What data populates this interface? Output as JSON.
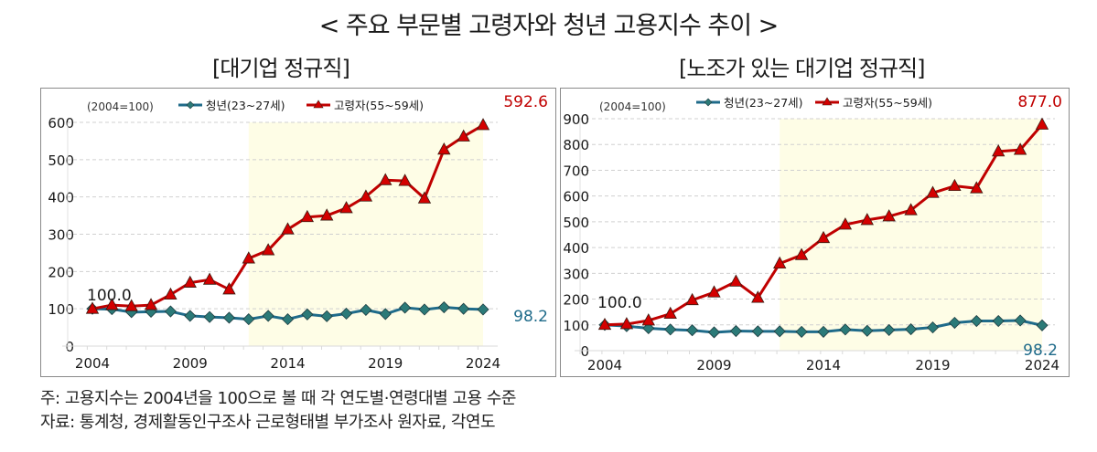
{
  "title": "< 주요 부문별 고령자와 청년 고용지수 추이 >",
  "notes": {
    "note": "주: 고용지수는 2004년을 100으로 볼 때 각 연도별·연령대별 고용 수준",
    "source": "자료: 통계청, 경제활동인구조사 근로형태별 부가조사 원자료, 각연도"
  },
  "colors": {
    "youth": "#1f6b8a",
    "youth_marker": "#2b7a78",
    "elder": "#c00000",
    "elder_marker": "#d40000",
    "shade": "#fefde6",
    "grid": "#d0d0d0"
  },
  "chart_data": [
    {
      "type": "line",
      "title": "[대기업 정규직]",
      "unit_note": "(2004=100)",
      "x": [
        2004,
        2005,
        2006,
        2007,
        2008,
        2009,
        2010,
        2011,
        2012,
        2013,
        2014,
        2015,
        2016,
        2017,
        2018,
        2019,
        2020,
        2021,
        2022,
        2023,
        2024
      ],
      "xticks": [
        "2004",
        "2009",
        "2014",
        "2019",
        "2024"
      ],
      "yticks": [
        "0",
        "100",
        "200",
        "300",
        "400",
        "500",
        "600"
      ],
      "ylim": [
        0,
        600
      ],
      "shaded_range": [
        2012,
        2024
      ],
      "grid": true,
      "legend": "top-center",
      "series": [
        {
          "name": "청년(23~27세)",
          "marker": "diamond",
          "values": [
            100,
            99,
            91,
            92,
            93,
            81,
            78,
            76,
            72,
            81,
            72,
            85,
            80,
            87,
            97,
            86,
            103,
            98,
            104,
            100,
            98.2
          ]
        },
        {
          "name": "고령자(55~59세)",
          "marker": "triangle",
          "values": [
            100,
            110,
            107,
            110,
            138,
            170,
            178,
            152,
            235,
            257,
            313,
            346,
            350,
            370,
            401,
            445,
            443,
            396,
            527,
            562,
            592.6
          ]
        }
      ],
      "annotations": {
        "start": "100.0",
        "elder_end": "592.6",
        "youth_end": "98.2"
      }
    },
    {
      "type": "line",
      "title": "[노조가 있는 대기업 정규직]",
      "unit_note": "(2004=100)",
      "x": [
        2004,
        2005,
        2006,
        2007,
        2008,
        2009,
        2010,
        2011,
        2012,
        2013,
        2014,
        2015,
        2016,
        2017,
        2018,
        2019,
        2020,
        2021,
        2022,
        2023,
        2024
      ],
      "xticks": [
        "2004",
        "2009",
        "2014",
        "2019",
        "2024"
      ],
      "yticks": [
        "0",
        "100",
        "200",
        "300",
        "400",
        "500",
        "600",
        "700",
        "800",
        "900"
      ],
      "ylim": [
        0,
        900
      ],
      "shaded_range": [
        2012,
        2024
      ],
      "grid": true,
      "legend": "top-center",
      "series": [
        {
          "name": "청년(23~27세)",
          "marker": "diamond",
          "values": [
            100,
            95,
            87,
            82,
            79,
            71,
            76,
            75,
            75,
            73,
            73,
            82,
            77,
            80,
            83,
            90,
            108,
            115,
            115,
            117,
            98.2
          ]
        },
        {
          "name": "고령자(55~59세)",
          "marker": "triangle",
          "values": [
            100,
            103,
            117,
            143,
            196,
            226,
            268,
            205,
            338,
            371,
            437,
            489,
            507,
            521,
            545,
            612,
            639,
            630,
            773,
            779,
            877.0
          ]
        }
      ],
      "annotations": {
        "start": "100.0",
        "elder_end": "877.0",
        "youth_end": "98.2"
      }
    }
  ]
}
